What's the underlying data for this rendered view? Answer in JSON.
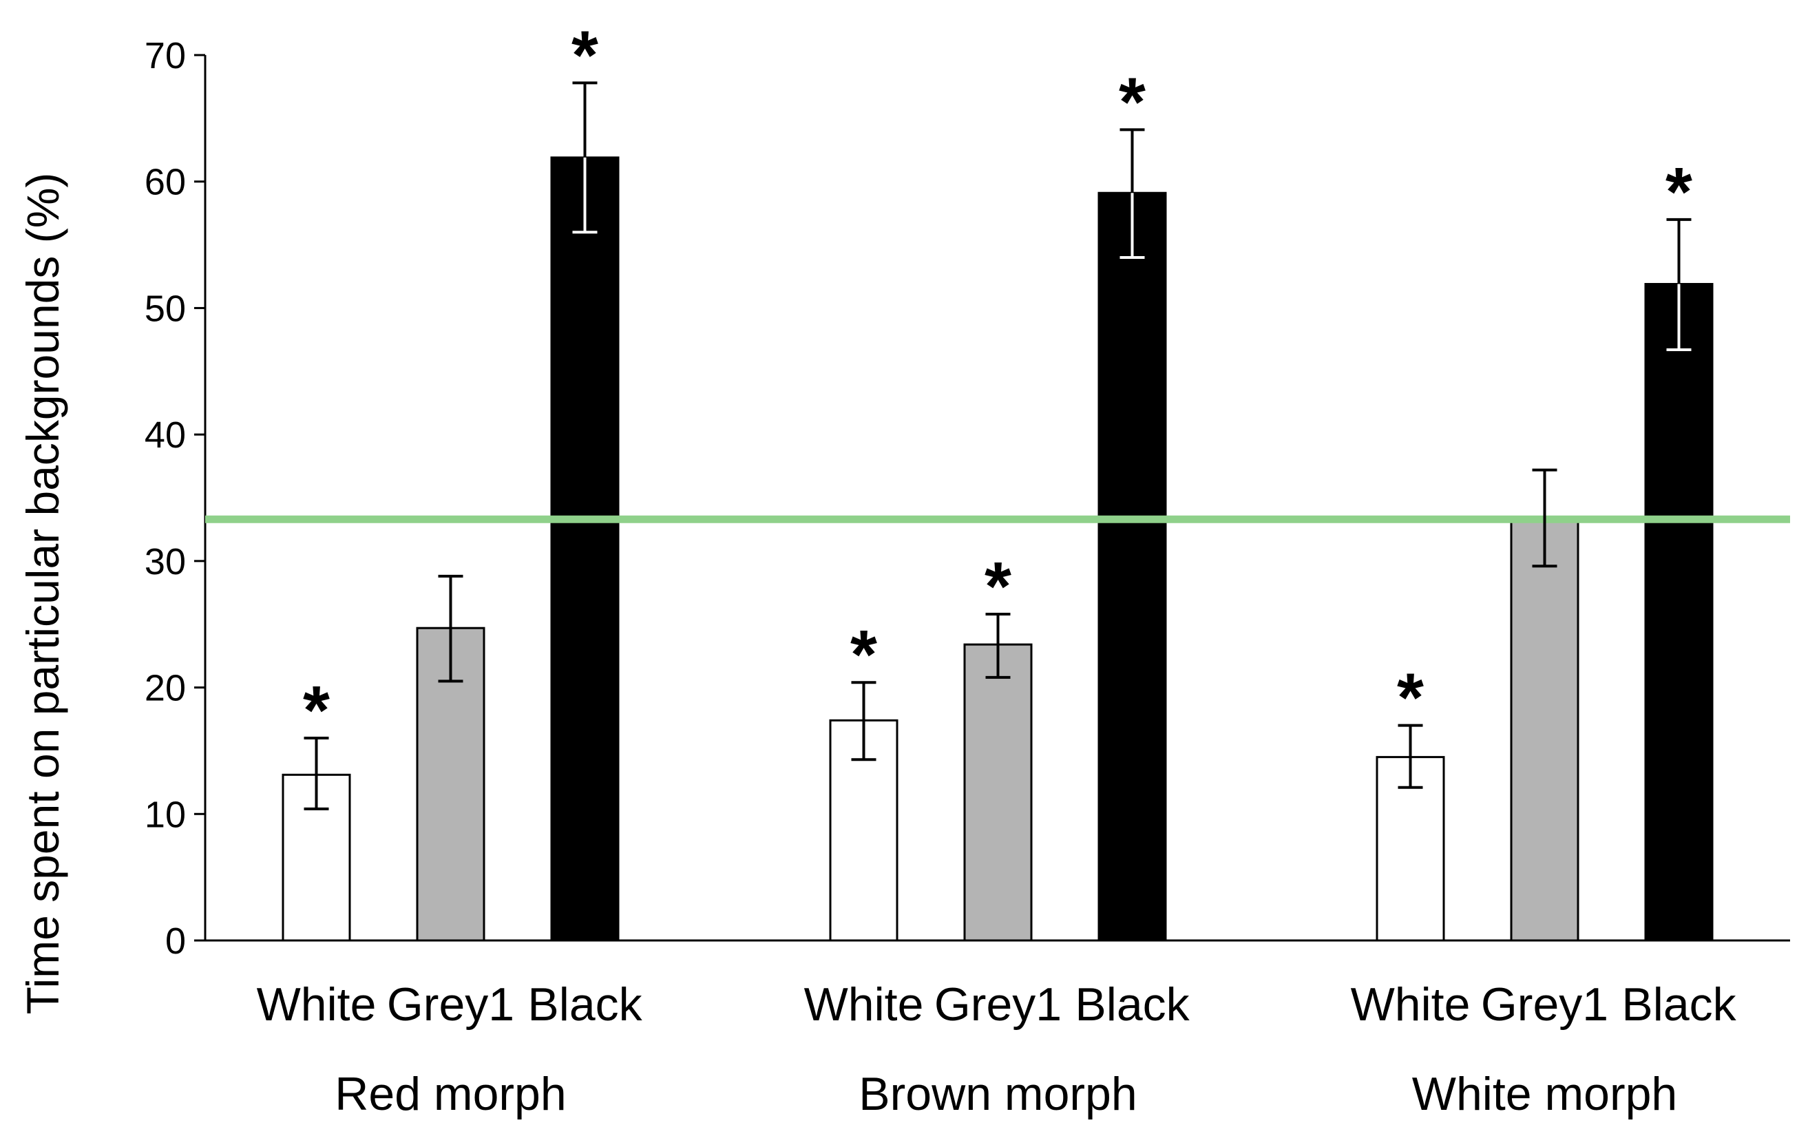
{
  "chart_data": {
    "type": "bar",
    "ylabel": "Time spent on particular backgrounds (%)",
    "ylim": [
      0,
      70
    ],
    "yticks": [
      0,
      10,
      20,
      30,
      40,
      50,
      60,
      70
    ],
    "grid": false,
    "reference_line": {
      "value": 33.3,
      "color": "#8fd18a"
    },
    "groups": [
      {
        "name": "Red morph",
        "bars": [
          {
            "category": "White",
            "value": 13.1,
            "error_low": 10.4,
            "error_high": 16.0,
            "significant": true
          },
          {
            "category": "Grey1",
            "value": 24.7,
            "error_low": 20.5,
            "error_high": 28.8,
            "significant": false
          },
          {
            "category": "Black",
            "value": 61.9,
            "error_low": 56.0,
            "error_high": 67.8,
            "significant": true
          }
        ]
      },
      {
        "name": "Brown morph",
        "bars": [
          {
            "category": "White",
            "value": 17.4,
            "error_low": 14.3,
            "error_high": 20.4,
            "significant": true
          },
          {
            "category": "Grey1",
            "value": 23.4,
            "error_low": 20.8,
            "error_high": 25.8,
            "significant": true
          },
          {
            "category": "Black",
            "value": 59.1,
            "error_low": 54.0,
            "error_high": 64.1,
            "significant": true
          }
        ]
      },
      {
        "name": "White morph",
        "bars": [
          {
            "category": "White",
            "value": 14.5,
            "error_low": 12.1,
            "error_high": 17.0,
            "significant": true
          },
          {
            "category": "Grey1",
            "value": 33.4,
            "error_low": 29.6,
            "error_high": 37.2,
            "significant": false
          },
          {
            "category": "Black",
            "value": 51.9,
            "error_low": 46.7,
            "error_high": 57.0,
            "significant": true
          }
        ]
      }
    ],
    "significance_marker": "*",
    "colors": {
      "White": "#ffffff",
      "Grey1": "#b4b4b4",
      "Black": "#000000"
    }
  }
}
